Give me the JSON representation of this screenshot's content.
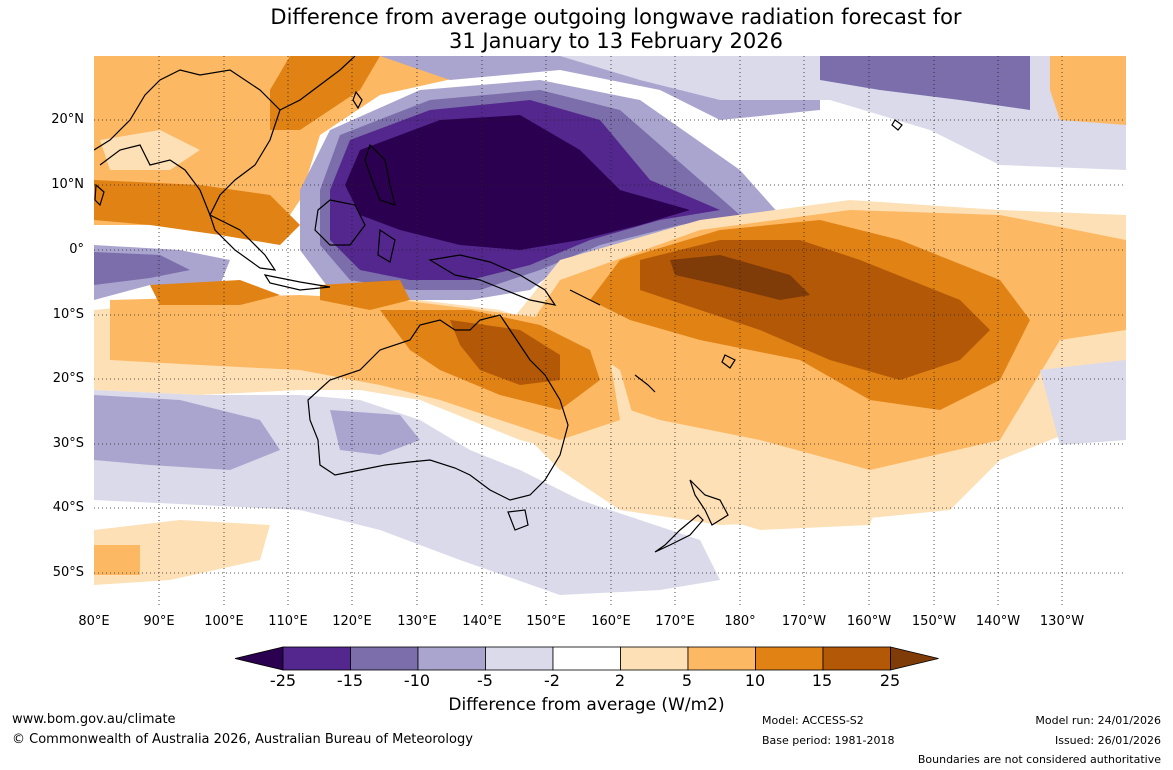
{
  "title": {
    "line1": "Difference from average outgoing longwave radiation forecast for",
    "line2": "31 January to 13 February 2026"
  },
  "lat_labels": [
    "20°N",
    "10°N",
    "0°",
    "10°S",
    "20°S",
    "30°S",
    "40°S",
    "50°S"
  ],
  "lon_labels": [
    "80°E",
    "90°E",
    "100°E",
    "110°E",
    "120°E",
    "130°E",
    "140°E",
    "150°E",
    "160°E",
    "170°E",
    "180°",
    "170°W",
    "160°W",
    "150°W",
    "140°W",
    "130°W"
  ],
  "colorbar": {
    "ticks": [
      "-25",
      "-15",
      "-10",
      "-5",
      "-2",
      "2",
      "5",
      "10",
      "15",
      "25"
    ],
    "colors": [
      "#2c0050",
      "#54278f",
      "#7b6eaa",
      "#aaa5cf",
      "#dadaeb",
      "#ffffff",
      "#fee0b6",
      "#fdb863",
      "#e08214",
      "#b35806",
      "#7f3b08"
    ],
    "label": "Difference from average (W/m2)"
  },
  "footer": {
    "url": "www.bom.gov.au/climate",
    "copyright": "© Commonwealth of Australia 2026, Australian Bureau of Meteorology",
    "model": "Model: ACCESS-S2",
    "base_period": "Base period: 1981-2018",
    "model_run": "Model run: 24/01/2026",
    "issued": "Issued: 26/01/2026",
    "disclaimer": "Boundaries are not considered authoritative"
  }
}
